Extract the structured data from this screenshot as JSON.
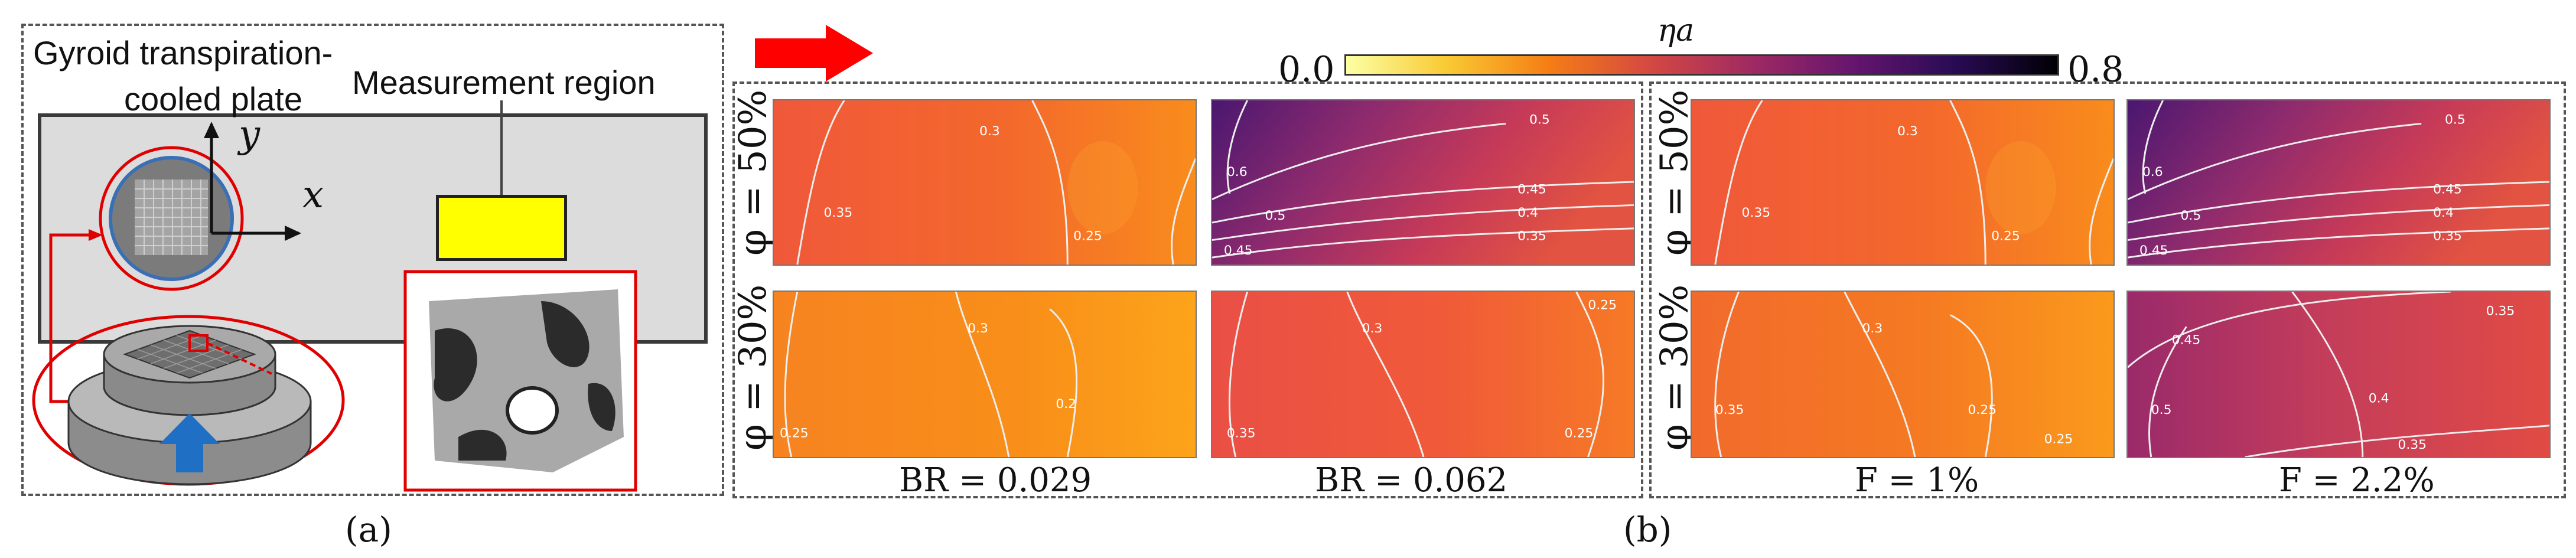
{
  "panel_a": {
    "plate_label_line1": "Gyroid transpiration-",
    "plate_label_line2": "cooled plate",
    "measurement_label": "Measurement region",
    "axis_x": "x",
    "axis_y": "y",
    "caption": "(a)"
  },
  "panel_b": {
    "caption": "(b)",
    "colorbar": {
      "title": "ηa",
      "min_label": "0.0",
      "max_label": "0.8",
      "colors": [
        "#fcffa4",
        "#f9c932",
        "#f57d15",
        "#d44842",
        "#9f2a63",
        "#65156e",
        "#280b54",
        "#000004"
      ]
    },
    "row_labels": [
      "φ = 50%",
      "φ = 30%"
    ],
    "column_captions": [
      "BR = 0.029",
      "BR = 0.062",
      "F = 1%",
      "F = 2.2%"
    ],
    "plots": [
      {
        "id": "br029-50",
        "contours": [
          "0.3",
          "0.35",
          "0.25"
        ]
      },
      {
        "id": "br062-50",
        "contours": [
          "0.5",
          "0.6",
          "0.45",
          "0.4",
          "0.35",
          "0.5",
          "0.45"
        ]
      },
      {
        "id": "f1-50",
        "contours": [
          "0.3",
          "0.35",
          "0.25"
        ]
      },
      {
        "id": "f22-50",
        "contours": [
          "0.5",
          "0.6",
          "0.45",
          "0.4",
          "0.35",
          "0.5",
          "0.45"
        ]
      },
      {
        "id": "br029-30",
        "contours": [
          "0.3",
          "0.25",
          "0.2"
        ]
      },
      {
        "id": "br062-30",
        "contours": [
          "0.35",
          "0.3",
          "0.25",
          "0.25"
        ]
      },
      {
        "id": "f1-30",
        "contours": [
          "0.3",
          "0.35",
          "0.25",
          "0.25"
        ]
      },
      {
        "id": "f22-30",
        "contours": [
          "0.45",
          "0.35",
          "0.5",
          "0.4",
          "0.35"
        ]
      }
    ]
  }
}
